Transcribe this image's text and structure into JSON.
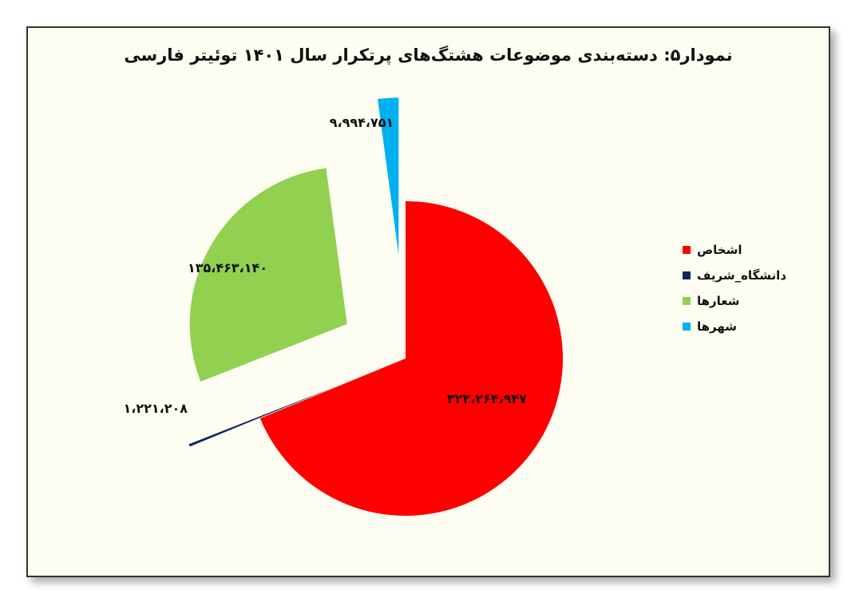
{
  "chart_data": {
    "type": "pie",
    "title": "نمودار۵: دسته‌بندی موضوعات هشتگ‌های پرتکرار سال ۱۴۰۱ توئیتر فارسی",
    "legend_position": "right",
    "slices": [
      {
        "name": "اشخاص",
        "value": 323264947,
        "label": "۳۲۳،۲۶۴،۹۴۷",
        "color": "#ff0000"
      },
      {
        "name": "دانشگاه_شریف",
        "value": 1221208,
        "label": "۱،۲۲۱،۲۰۸",
        "color": "#0f2860"
      },
      {
        "name": "شعارها",
        "value": 135463140,
        "label": "۱۳۵،۴۶۳،۱۴۰",
        "color": "#92d050"
      },
      {
        "name": "شهرها",
        "value": 9994751,
        "label": "۹،۹۹۴،۷۵۱",
        "color": "#00b0f0"
      }
    ]
  }
}
